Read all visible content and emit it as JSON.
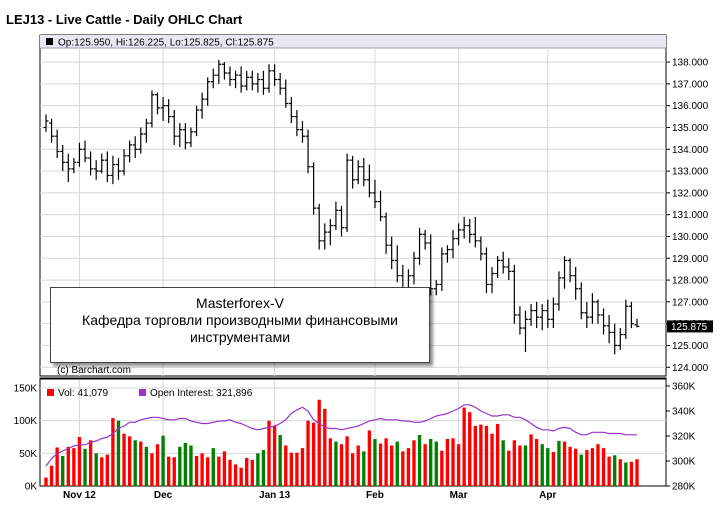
{
  "chart_data": {
    "type": "ohlc",
    "title": "LEJ13 - Live Cattle - Daily OHLC Chart",
    "info_bar": "Op:125.950, Hi:126.225, Lo:125.825, Cl:125.875",
    "copyright": "(c) Barchart.com",
    "current_price_label": "125.875",
    "current_price": 125.875,
    "price_axis": {
      "ylim": [
        123.6,
        138.6
      ],
      "ticks": [
        "124.000",
        "125.000",
        "126.000",
        "127.000",
        "128.000",
        "129.000",
        "130.000",
        "131.000",
        "132.000",
        "133.000",
        "134.000",
        "135.000",
        "136.000",
        "137.000",
        "138.000"
      ],
      "position": "right"
    },
    "x_axis": {
      "ticks": [
        {
          "label": "Nov 12",
          "index": 6
        },
        {
          "label": "Dec",
          "index": 21
        },
        {
          "label": "Jan 13",
          "index": 41
        },
        {
          "label": "Feb",
          "index": 59
        },
        {
          "label": "Mar",
          "index": 74
        },
        {
          "label": "Apr",
          "index": 90
        }
      ]
    },
    "grid": true,
    "ohlc": [
      [
        135.0,
        135.6,
        134.8,
        135.3
      ],
      [
        135.2,
        135.4,
        134.3,
        134.6
      ],
      [
        134.6,
        134.9,
        133.6,
        133.9
      ],
      [
        133.9,
        134.2,
        133.0,
        133.4
      ],
      [
        133.4,
        133.8,
        132.5,
        133.1
      ],
      [
        133.1,
        133.6,
        132.9,
        133.4
      ],
      [
        133.4,
        134.3,
        133.2,
        134.0
      ],
      [
        134.0,
        134.4,
        133.4,
        133.6
      ],
      [
        133.6,
        133.9,
        132.8,
        133.1
      ],
      [
        133.1,
        133.5,
        132.6,
        133.0
      ],
      [
        133.0,
        133.8,
        132.9,
        133.5
      ],
      [
        133.5,
        133.9,
        132.5,
        132.8
      ],
      [
        132.8,
        133.7,
        132.4,
        133.3
      ],
      [
        133.3,
        133.6,
        132.6,
        133.0
      ],
      [
        133.0,
        134.0,
        132.8,
        133.7
      ],
      [
        133.7,
        134.4,
        133.4,
        134.2
      ],
      [
        134.2,
        134.6,
        133.6,
        134.0
      ],
      [
        134.0,
        135.0,
        133.8,
        134.7
      ],
      [
        134.7,
        135.4,
        134.3,
        135.2
      ],
      [
        135.2,
        136.7,
        135.0,
        136.5
      ],
      [
        136.5,
        136.6,
        135.6,
        135.9
      ],
      [
        135.9,
        136.4,
        135.3,
        136.0
      ],
      [
        136.0,
        136.3,
        135.2,
        135.5
      ],
      [
        135.5,
        135.8,
        134.2,
        134.6
      ],
      [
        134.6,
        135.2,
        134.1,
        134.9
      ],
      [
        134.9,
        135.2,
        134.0,
        134.3
      ],
      [
        134.3,
        135.0,
        134.1,
        134.8
      ],
      [
        134.8,
        136.0,
        134.6,
        135.8
      ],
      [
        135.8,
        136.6,
        135.4,
        136.3
      ],
      [
        136.3,
        137.3,
        136.0,
        137.1
      ],
      [
        137.1,
        137.7,
        136.8,
        137.4
      ],
      [
        137.4,
        138.1,
        137.0,
        137.9
      ],
      [
        137.9,
        138.0,
        137.2,
        137.5
      ],
      [
        137.5,
        137.8,
        136.9,
        137.2
      ],
      [
        137.2,
        137.6,
        136.8,
        137.4
      ],
      [
        137.4,
        137.8,
        136.6,
        136.9
      ],
      [
        136.9,
        137.6,
        136.7,
        137.3
      ],
      [
        137.3,
        137.6,
        136.7,
        137.0
      ],
      [
        137.0,
        137.5,
        136.6,
        137.2
      ],
      [
        137.2,
        137.6,
        136.5,
        136.8
      ],
      [
        136.8,
        137.9,
        136.6,
        137.6
      ],
      [
        137.6,
        137.9,
        136.9,
        137.2
      ],
      [
        137.2,
        137.5,
        136.5,
        136.8
      ],
      [
        136.8,
        137.2,
        135.9,
        136.1
      ],
      [
        136.1,
        136.4,
        135.2,
        135.5
      ],
      [
        135.5,
        135.8,
        134.6,
        134.9
      ],
      [
        134.9,
        135.3,
        134.3,
        134.6
      ],
      [
        134.6,
        134.9,
        132.9,
        133.2
      ],
      [
        133.2,
        133.4,
        131.0,
        131.3
      ],
      [
        131.3,
        131.5,
        129.4,
        129.8
      ],
      [
        129.8,
        130.6,
        129.4,
        130.2
      ],
      [
        130.2,
        130.8,
        129.6,
        130.5
      ],
      [
        130.5,
        131.6,
        130.3,
        131.2
      ],
      [
        131.2,
        131.4,
        130.0,
        130.4
      ],
      [
        130.4,
        133.8,
        130.2,
        133.5
      ],
      [
        133.5,
        133.7,
        132.2,
        132.6
      ],
      [
        132.6,
        133.5,
        132.4,
        133.2
      ],
      [
        133.2,
        133.6,
        132.3,
        132.6
      ],
      [
        132.6,
        133.3,
        131.8,
        132.0
      ],
      [
        132.0,
        132.6,
        131.3,
        131.6
      ],
      [
        131.6,
        132.1,
        130.7,
        130.9
      ],
      [
        130.9,
        131.1,
        129.2,
        129.6
      ],
      [
        129.6,
        130.0,
        128.5,
        128.9
      ],
      [
        128.9,
        129.6,
        127.9,
        128.2
      ],
      [
        128.2,
        128.7,
        127.2,
        127.5
      ],
      [
        127.5,
        128.5,
        127.2,
        128.2
      ],
      [
        128.2,
        129.3,
        127.8,
        129.0
      ],
      [
        129.0,
        130.4,
        128.7,
        130.1
      ],
      [
        130.1,
        130.3,
        129.4,
        129.7
      ],
      [
        129.7,
        130.1,
        127.3,
        127.6
      ],
      [
        127.6,
        128.0,
        127.3,
        127.8
      ],
      [
        127.8,
        129.5,
        127.5,
        129.2
      ],
      [
        129.2,
        129.6,
        128.8,
        129.4
      ],
      [
        129.4,
        130.3,
        129.0,
        129.9
      ],
      [
        129.9,
        130.6,
        129.6,
        130.3
      ],
      [
        130.3,
        130.9,
        129.9,
        130.5
      ],
      [
        130.5,
        130.8,
        129.7,
        130.1
      ],
      [
        130.1,
        130.9,
        129.5,
        129.8
      ],
      [
        129.8,
        130.0,
        128.9,
        129.2
      ],
      [
        129.2,
        129.5,
        127.4,
        127.8
      ],
      [
        127.8,
        128.6,
        127.4,
        128.3
      ],
      [
        128.3,
        129.1,
        128.1,
        128.9
      ],
      [
        128.9,
        129.3,
        128.3,
        128.6
      ],
      [
        128.6,
        129.0,
        128.0,
        128.4
      ],
      [
        128.4,
        128.7,
        126.0,
        126.4
      ],
      [
        126.4,
        126.8,
        125.5,
        125.8
      ],
      [
        125.8,
        126.6,
        124.7,
        126.2
      ],
      [
        126.2,
        126.9,
        125.9,
        126.6
      ],
      [
        126.6,
        127.0,
        125.8,
        126.3
      ],
      [
        126.3,
        126.9,
        125.7,
        126.6
      ],
      [
        126.6,
        127.1,
        125.8,
        126.2
      ],
      [
        126.2,
        127.2,
        125.8,
        126.9
      ],
      [
        126.9,
        128.4,
        126.6,
        128.1
      ],
      [
        128.1,
        129.1,
        127.6,
        128.9
      ],
      [
        128.9,
        129.0,
        127.9,
        128.2
      ],
      [
        128.2,
        128.6,
        127.1,
        127.6
      ],
      [
        127.6,
        127.9,
        126.2,
        126.5
      ],
      [
        126.5,
        127.0,
        125.8,
        126.3
      ],
      [
        126.3,
        127.4,
        126.0,
        127.0
      ],
      [
        127.0,
        127.1,
        126.0,
        126.4
      ],
      [
        126.4,
        126.7,
        125.5,
        125.9
      ],
      [
        125.9,
        126.4,
        125.1,
        125.6
      ],
      [
        125.6,
        126.0,
        124.6,
        125.0
      ],
      [
        125.0,
        125.8,
        124.8,
        125.5
      ],
      [
        125.5,
        127.1,
        125.3,
        126.8
      ],
      [
        126.8,
        127.0,
        125.8,
        126.0
      ],
      [
        125.95,
        126.225,
        125.825,
        125.875
      ]
    ],
    "volume_panel": {
      "legend_vol": "Vol: 41,079",
      "legend_oi": "Open Interest: 321,896",
      "volume_ticks": [
        "0K",
        "50K",
        "100K",
        "150K"
      ],
      "oi_ticks": [
        "280K",
        "300K",
        "320K",
        "340K",
        "360K"
      ],
      "ylim_volume": [
        0,
        150000
      ],
      "ylim_oi": [
        280000,
        360000
      ],
      "volume": [
        13000,
        31000,
        59000,
        46000,
        60000,
        58000,
        75000,
        57000,
        70000,
        50000,
        44000,
        48000,
        104000,
        100000,
        80000,
        76000,
        70000,
        68000,
        60000,
        50000,
        64000,
        77000,
        45000,
        44000,
        60000,
        66000,
        62000,
        46000,
        50000,
        44000,
        58000,
        45000,
        53000,
        40000,
        33000,
        28000,
        43000,
        40000,
        50000,
        55000,
        100000,
        92000,
        78000,
        62000,
        51000,
        51000,
        58000,
        100000,
        97000,
        132000,
        118000,
        73000,
        68000,
        64000,
        76000,
        50000,
        62000,
        53000,
        85000,
        72000,
        65000,
        73000,
        62000,
        68000,
        53000,
        58000,
        70000,
        78000,
        64000,
        72000,
        68000,
        54000,
        72000,
        73000,
        64000,
        120000,
        113000,
        92000,
        94000,
        92000,
        80000,
        95000,
        70000,
        54000,
        70000,
        62000,
        62000,
        79000,
        72000,
        64000,
        58000,
        52000,
        69000,
        68000,
        60000,
        57000,
        48000,
        55000,
        58000,
        64000,
        58000,
        45000,
        47000,
        41000,
        36000,
        37000,
        41000
      ],
      "volume_colors": [
        "red",
        "red",
        "red",
        "green",
        "red",
        "red",
        "red",
        "green",
        "red",
        "green",
        "red",
        "red",
        "red",
        "green",
        "red",
        "red",
        "green",
        "red",
        "green",
        "red",
        "red",
        "green",
        "red",
        "red",
        "green",
        "green",
        "green",
        "red",
        "red",
        "red",
        "green",
        "red",
        "red",
        "red",
        "red",
        "red",
        "red",
        "red",
        "green",
        "green",
        "red",
        "red",
        "green",
        "red",
        "red",
        "red",
        "red",
        "red",
        "red",
        "red",
        "red",
        "red",
        "green",
        "red",
        "red",
        "red",
        "red",
        "green",
        "red",
        "green",
        "red",
        "red",
        "red",
        "green",
        "red",
        "red",
        "red",
        "green",
        "red",
        "green",
        "green",
        "red",
        "red",
        "red",
        "red",
        "red",
        "red",
        "red",
        "red",
        "red",
        "red",
        "red",
        "green",
        "red",
        "red",
        "red",
        "green",
        "red",
        "red",
        "green",
        "green",
        "red",
        "green",
        "red",
        "red",
        "red",
        "green",
        "red",
        "red",
        "red",
        "red",
        "red",
        "green",
        "red",
        "green",
        "red",
        "red"
      ],
      "open_interest": [
        296000,
        302000,
        306000,
        308000,
        310000,
        312000,
        313000,
        313000,
        315000,
        316000,
        318000,
        319000,
        322000,
        326000,
        328000,
        331000,
        331000,
        333000,
        334000,
        335000,
        335000,
        334000,
        333000,
        333000,
        334000,
        334000,
        332000,
        331000,
        330000,
        330000,
        331000,
        332000,
        332000,
        333000,
        331000,
        330000,
        328000,
        326000,
        325000,
        326000,
        327000,
        328000,
        330000,
        333000,
        338000,
        341000,
        343000,
        340000,
        333000,
        330000,
        327000,
        326000,
        326000,
        325000,
        326000,
        327000,
        328000,
        330000,
        332000,
        333000,
        334000,
        333000,
        333000,
        333000,
        332000,
        332000,
        331000,
        331000,
        332000,
        334000,
        336000,
        337000,
        338000,
        340000,
        342000,
        345000,
        345000,
        343000,
        340000,
        338000,
        336000,
        336000,
        337000,
        337000,
        335000,
        335000,
        333000,
        330000,
        327000,
        325000,
        325000,
        324000,
        326000,
        327000,
        326000,
        323000,
        321000,
        321000,
        323000,
        323000,
        323000,
        322000,
        322000,
        322000,
        321000,
        321000,
        321000
      ]
    }
  },
  "annotation": {
    "line1": "Masterforex-V",
    "line2": "Кафедра торговли производными финансовыми",
    "line3": "инструментами"
  },
  "colors": {
    "up_bar": "#008000",
    "down_bar": "#ff0000",
    "oi_line": "#9933cc",
    "grid": "#d7d7d7",
    "price_label_bg": "#000000"
  }
}
